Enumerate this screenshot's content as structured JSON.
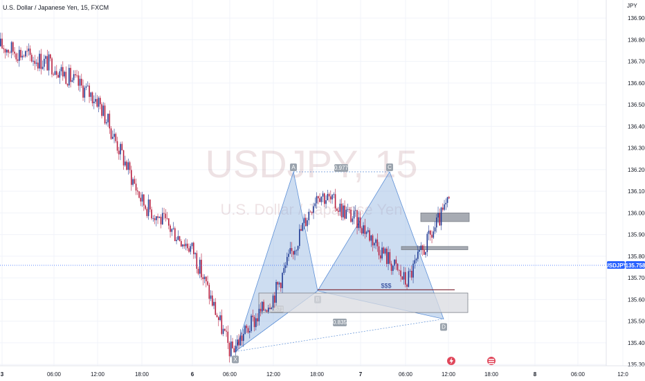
{
  "header": {
    "instrument_description": "U.S. Dollar / Japanese Yen",
    "interval": "15",
    "exchange": "FXCM",
    "title": "U.S. Dollar / Japanese Yen, 15, FXCM"
  },
  "watermark": {
    "ticker": "USDJPY, 15",
    "description": "U.S. Dollar / Japanese Yen"
  },
  "axis": {
    "currency_label": "JPY",
    "y_ticks": [
      "136.900",
      "136.800",
      "136.700",
      "136.600",
      "136.500",
      "136.400",
      "136.300",
      "136.200",
      "136.100",
      "136.000",
      "135.900",
      "135.800",
      "135.700",
      "135.600",
      "135.500",
      "135.400",
      "135.300"
    ],
    "x_ticks": [
      "3",
      "06:00",
      "12:00",
      "18:00",
      "6",
      "06:00",
      "12:00",
      "18:00",
      "7",
      "06:00",
      "12:00",
      "18:00",
      "8",
      "06:00",
      "12:0"
    ]
  },
  "current_price": {
    "symbol_tag": "USDJPY",
    "price_text": "135.758",
    "value": 135.758,
    "color": "#2962ff"
  },
  "colors": {
    "up": "#1f3a93",
    "down": "#b71c3c",
    "pattern_fill": "#90b4e0",
    "pattern_stroke": "#5c8fd6",
    "label_bg": "#9aa3ad",
    "zone_fill": "#d9dbe0",
    "zone_stroke": "#7a7f88",
    "liquidity_line": "#7a1f2b"
  },
  "pattern": {
    "points": [
      {
        "label": "X",
        "value": 135.36
      },
      {
        "label": "A",
        "value": 136.19
      },
      {
        "label": "B",
        "value": 135.64
      },
      {
        "label": "C",
        "value": 136.19
      },
      {
        "label": "D",
        "value": 135.51
      }
    ],
    "ratios": [
      {
        "text": "0.977",
        "between": "AC"
      },
      {
        "text": "0.671",
        "between": "XB"
      },
      {
        "text": "0.835",
        "between": "XD"
      }
    ]
  },
  "annotations": {
    "liquidity_label": "$$$",
    "liquidity_level": 135.645,
    "demand_zone": [
      135.54,
      135.63
    ],
    "supply_zone_1": [
      135.96,
      136.0
    ],
    "supply_zone_2": [
      135.83,
      135.845
    ]
  },
  "events": [
    {
      "icon": "lightning-icon",
      "color": "#e0475b"
    },
    {
      "icon": "us-flag-icon",
      "color": "#e0475b"
    }
  ],
  "chart_data": {
    "type": "line",
    "title": "U.S. Dollar / Japanese Yen, 15, FXCM",
    "xlabel": "",
    "ylabel": "JPY",
    "ylim": [
      135.23,
      136.99
    ],
    "grid": true,
    "x": [
      "3 00:00",
      "3 06:00",
      "3 12:00",
      "3 18:00",
      "6 00:00",
      "6 06:00",
      "6 08:00",
      "6 12:00",
      "6 14:00",
      "6 18:00",
      "7 00:00",
      "7 03:00",
      "7 06:00",
      "7 09:00",
      "7 12:00"
    ],
    "series": [
      {
        "name": "",
        "values": [
          136.77,
          136.68,
          136.52,
          136.05,
          135.83,
          135.36,
          135.62,
          136.1,
          135.95,
          135.68,
          136.05,
          136.19,
          135.98,
          135.92,
          135.7
        ]
      }
    ]
  }
}
